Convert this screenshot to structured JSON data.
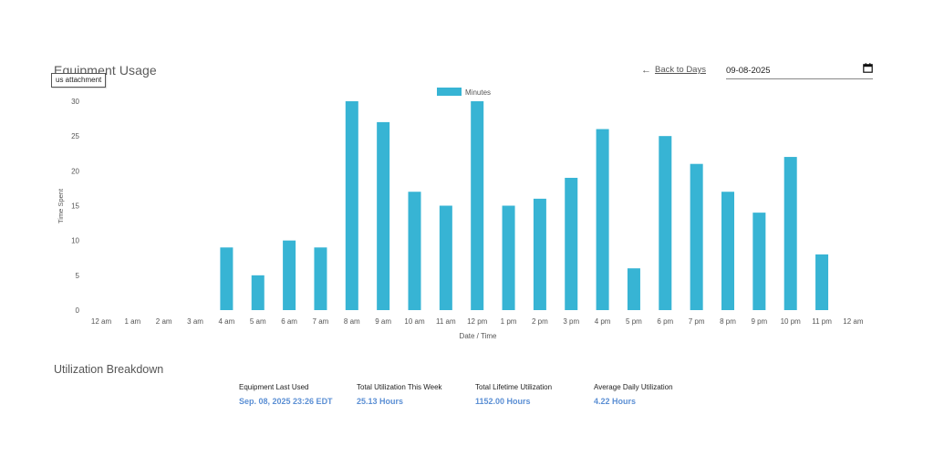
{
  "page_title": "Equipment Usage",
  "tooltip_text": "us attachment",
  "back_link": {
    "label": "Back to Days",
    "icon": "arrow-left-icon"
  },
  "date_input": {
    "value": "09-08-2025",
    "icon": "calendar-icon"
  },
  "chart_data": {
    "type": "bar",
    "categories": [
      "12 am",
      "1 am",
      "2 am",
      "3 am",
      "4 am",
      "5 am",
      "6 am",
      "7 am",
      "8 am",
      "9 am",
      "10 am",
      "11 am",
      "12 pm",
      "1 pm",
      "2 pm",
      "3 pm",
      "4 pm",
      "5 pm",
      "6 pm",
      "7 pm",
      "8 pm",
      "9 pm",
      "10 pm",
      "11 pm",
      "12 am"
    ],
    "series": [
      {
        "name": "Minutes",
        "color": "#37b4d4",
        "values": [
          0,
          0,
          0,
          0,
          9,
          5,
          10,
          9,
          30,
          27,
          17,
          15,
          30,
          15,
          16,
          19,
          26,
          6,
          25,
          21,
          17,
          14,
          22,
          8,
          0
        ]
      }
    ],
    "ylabel": "Time Spent",
    "xlabel": "Date / Time",
    "ylim": [
      0,
      30
    ],
    "yticks": [
      0,
      5,
      10,
      15,
      20,
      25,
      30
    ],
    "grid": false,
    "legend_position": "top-center"
  },
  "utilization": {
    "title": "Utilization Breakdown",
    "stats": [
      {
        "label": "Equipment Last Used",
        "value": "Sep. 08, 2025 23:26 EDT"
      },
      {
        "label": "Total Utilization This Week",
        "value": "25.13 Hours"
      },
      {
        "label": "Total Lifetime Utilization",
        "value": "1152.00 Hours"
      },
      {
        "label": "Average Daily Utilization",
        "value": "4.22 Hours"
      }
    ]
  }
}
